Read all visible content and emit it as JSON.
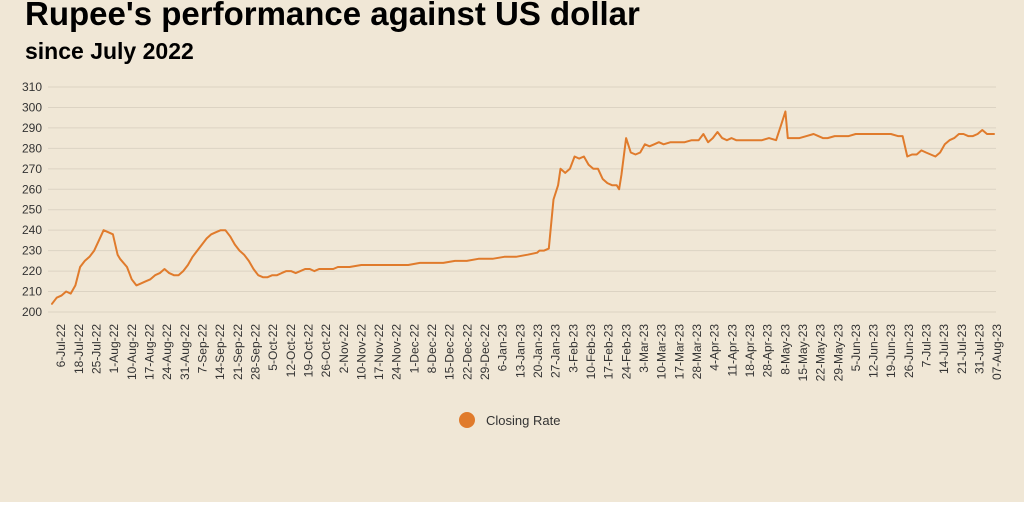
{
  "page": {
    "title": "Rupee's performance against US dollar",
    "subtitle": "since July 2022"
  },
  "chart_data": {
    "type": "line",
    "title": "Rupee's performance against US dollar",
    "subtitle": "since July 2022",
    "xlabel": "",
    "ylabel": "",
    "ylim": [
      200,
      310
    ],
    "yticks": [
      200,
      210,
      220,
      230,
      240,
      250,
      260,
      270,
      280,
      290,
      300,
      310
    ],
    "grid": true,
    "legend_position": "bottom",
    "line_color": "#e07b2c",
    "x_tick_labels": [
      "6-Jul-22",
      "18-Jul-22",
      "25-Jul-22",
      "1-Aug-22",
      "10-Aug-22",
      "17-Aug-22",
      "24-Aug-22",
      "31-Aug-22",
      "7-Sep-22",
      "14-Sep-22",
      "21-Sep-22",
      "28-Sep-22",
      "5-Oct-22",
      "12-Oct-22",
      "19-Oct-22",
      "26-Oct-22",
      "2-Nov-22",
      "10-Nov-22",
      "17-Nov-22",
      "24-Nov-22",
      "1-Dec-22",
      "8-Dec-22",
      "15-Dec-22",
      "22-Dec-22",
      "29-Dec-22",
      "6-Jan-23",
      "13-Jan-23",
      "20-Jan-23",
      "27-Jan-23",
      "3-Feb-23",
      "10-Feb-23",
      "17-Feb-23",
      "24-Feb-23",
      "3-Mar-23",
      "10-Mar-23",
      "17-Mar-23",
      "28-Mar-23",
      "4-Apr-23",
      "11-Apr-23",
      "18-Apr-23",
      "28-Apr-23",
      "8-May-23",
      "15-May-23",
      "22-May-23",
      "29-May-23",
      "5-Jun-23",
      "12-Jun-23",
      "19-Jun-23",
      "26-Jun-23",
      "7-Jul-23",
      "14-Jul-23",
      "21-Jul-23",
      "31-Jul-23",
      "07-Aug-23"
    ],
    "series": [
      {
        "name": "Closing Rate",
        "x": [
          "2022-07-01",
          "2022-07-03",
          "2022-07-05",
          "2022-07-07",
          "2022-07-09",
          "2022-07-11",
          "2022-07-13",
          "2022-07-15",
          "2022-07-17",
          "2022-07-19",
          "2022-07-21",
          "2022-07-23",
          "2022-07-25",
          "2022-07-27",
          "2022-07-29",
          "2022-07-30",
          "2022-08-02",
          "2022-08-04",
          "2022-08-06",
          "2022-08-08",
          "2022-08-10",
          "2022-08-12",
          "2022-08-14",
          "2022-08-16",
          "2022-08-18",
          "2022-08-20",
          "2022-08-22",
          "2022-08-24",
          "2022-08-26",
          "2022-08-28",
          "2022-08-30",
          "2022-09-01",
          "2022-09-03",
          "2022-09-05",
          "2022-09-07",
          "2022-09-09",
          "2022-09-11",
          "2022-09-13",
          "2022-09-15",
          "2022-09-17",
          "2022-09-19",
          "2022-09-21",
          "2022-09-23",
          "2022-09-25",
          "2022-09-27",
          "2022-09-29",
          "2022-10-01",
          "2022-10-03",
          "2022-10-05",
          "2022-10-07",
          "2022-10-09",
          "2022-10-11",
          "2022-10-13",
          "2022-10-15",
          "2022-10-17",
          "2022-10-19",
          "2022-10-21",
          "2022-10-23",
          "2022-10-25",
          "2022-10-27",
          "2022-10-29",
          "2022-10-31",
          "2022-11-05",
          "2022-11-10",
          "2022-11-15",
          "2022-11-20",
          "2022-11-25",
          "2022-11-30",
          "2022-12-05",
          "2022-12-10",
          "2022-12-15",
          "2022-12-20",
          "2022-12-25",
          "2022-12-30",
          "2023-01-05",
          "2023-01-10",
          "2023-01-15",
          "2023-01-20",
          "2023-01-24",
          "2023-01-25",
          "2023-01-27",
          "2023-01-29",
          "2023-01-31",
          "2023-02-02",
          "2023-02-03",
          "2023-02-05",
          "2023-02-07",
          "2023-02-09",
          "2023-02-11",
          "2023-02-13",
          "2023-02-15",
          "2023-02-17",
          "2023-02-19",
          "2023-02-21",
          "2023-02-23",
          "2023-02-25",
          "2023-02-27",
          "2023-02-28",
          "2023-03-01",
          "2023-03-03",
          "2023-03-05",
          "2023-03-07",
          "2023-03-09",
          "2023-03-11",
          "2023-03-13",
          "2023-03-15",
          "2023-03-17",
          "2023-03-19",
          "2023-03-22",
          "2023-03-25",
          "2023-03-28",
          "2023-03-31",
          "2023-04-03",
          "2023-04-05",
          "2023-04-07",
          "2023-04-09",
          "2023-04-11",
          "2023-04-13",
          "2023-04-15",
          "2023-04-17",
          "2023-04-19",
          "2023-04-21",
          "2023-04-24",
          "2023-04-27",
          "2023-04-30",
          "2023-05-03",
          "2023-05-06",
          "2023-05-08",
          "2023-05-10",
          "2023-05-11",
          "2023-05-12",
          "2023-05-16",
          "2023-05-19",
          "2023-05-22",
          "2023-05-24",
          "2023-05-26",
          "2023-05-28",
          "2023-05-31",
          "2023-06-03",
          "2023-06-06",
          "2023-06-09",
          "2023-06-12",
          "2023-06-15",
          "2023-06-18",
          "2023-06-21",
          "2023-06-24",
          "2023-06-27",
          "2023-06-28",
          "2023-06-29",
          "2023-07-01",
          "2023-07-03",
          "2023-07-05",
          "2023-07-07",
          "2023-07-09",
          "2023-07-11",
          "2023-07-13",
          "2023-07-15",
          "2023-07-17",
          "2023-07-19",
          "2023-07-21",
          "2023-07-23",
          "2023-07-25",
          "2023-07-27",
          "2023-07-29",
          "2023-07-31",
          "2023-08-02",
          "2023-08-04",
          "2023-08-07"
        ],
        "values": [
          204,
          207,
          208,
          210,
          209,
          213,
          222,
          225,
          227,
          230,
          235,
          240,
          239,
          238,
          228,
          226,
          222,
          216,
          213,
          214,
          215,
          216,
          218,
          219,
          221,
          219,
          218,
          218,
          220,
          223,
          227,
          230,
          233,
          236,
          238,
          239,
          240,
          240,
          237,
          233,
          230,
          228,
          225,
          221,
          218,
          217,
          217,
          218,
          218,
          219,
          220,
          220,
          219,
          220,
          221,
          221,
          220,
          221,
          221,
          221,
          221,
          222,
          222,
          223,
          223,
          223,
          223,
          223,
          224,
          224,
          224,
          225,
          225,
          226,
          226,
          227,
          227,
          228,
          229,
          230,
          230,
          231,
          255,
          262,
          270,
          268,
          270,
          276,
          275,
          276,
          272,
          270,
          270,
          265,
          263,
          262,
          262,
          260,
          267,
          285,
          278,
          277,
          278,
          282,
          281,
          282,
          283,
          282,
          283,
          283,
          283,
          284,
          284,
          287,
          283,
          285,
          288,
          285,
          284,
          285,
          284,
          284,
          284,
          284,
          284,
          285,
          284,
          291,
          298,
          285,
          285,
          285,
          286,
          287,
          286,
          285,
          285,
          286,
          286,
          286,
          287,
          287,
          287,
          287,
          287,
          287,
          286,
          286,
          286,
          276,
          277,
          277,
          279,
          278,
          277,
          276,
          278,
          282,
          284,
          285,
          287,
          287,
          286,
          286,
          287,
          289,
          287,
          287
        ]
      }
    ]
  }
}
